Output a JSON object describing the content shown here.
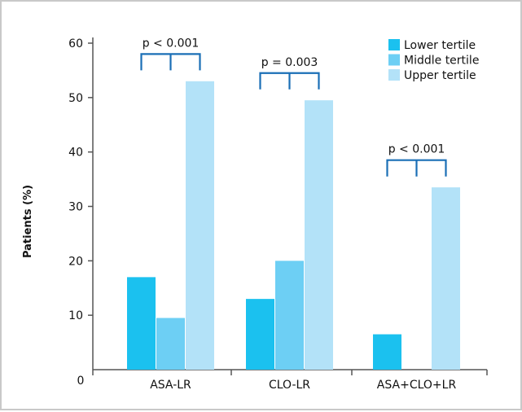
{
  "chart_data": {
    "type": "bar",
    "ylabel": "Patients (%)",
    "xlabel": "",
    "ylim": [
      0,
      60
    ],
    "yticks": [
      10,
      20,
      30,
      40,
      50,
      60
    ],
    "origin_label": "0",
    "categories": [
      "ASA-LR",
      "CLO-LR",
      "ASA+CLO+LR"
    ],
    "series": [
      {
        "name": "Lower tertile",
        "color": "#1bc1ef",
        "values": [
          17,
          13,
          6.5
        ]
      },
      {
        "name": "Middle tertile",
        "color": "#6dcff4",
        "values": [
          9.5,
          20,
          0
        ]
      },
      {
        "name": "Upper tertile",
        "color": "#b3e2f8",
        "values": [
          53,
          49.5,
          33.5
        ]
      }
    ],
    "annotations": [
      {
        "category": "ASA-LR",
        "text": "p < 0.001",
        "bracket_level": 58
      },
      {
        "category": "CLO-LR",
        "text": "p = 0.003",
        "bracket_level": 54.5
      },
      {
        "category": "ASA+CLO+LR",
        "text": "p < 0.001",
        "bracket_level": 38.5
      }
    ],
    "bracket_color": "#1a6fb6",
    "axis_color": "#555555",
    "legend_position": "top-right",
    "grid": false
  }
}
